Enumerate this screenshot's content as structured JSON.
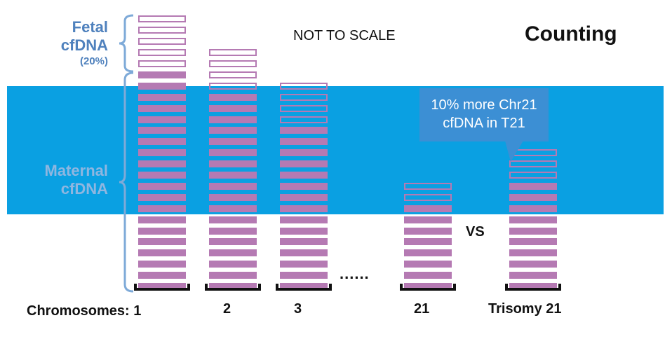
{
  "title": "Counting",
  "note": "NOT TO SCALE",
  "fetal": {
    "line1": "Fetal",
    "line2": "cfDNA",
    "pct": "(20%)"
  },
  "maternal": {
    "line1": "Maternal",
    "line2": "cfDNA"
  },
  "callout": {
    "line1": "10% more Chr21",
    "line2": "cfDNA in T21"
  },
  "vs_label": "VS",
  "ellipsis": "......",
  "chromosome_prefix": "Chromosomes: 1",
  "columns": [
    {
      "label": "2",
      "fetal_blocks": 4,
      "maternal_blocks": 18
    },
    {
      "label": "3",
      "fetal_blocks": 4,
      "maternal_blocks": 15
    },
    {
      "label": "21",
      "fetal_blocks": 2,
      "maternal_blocks": 8
    },
    {
      "label": "Trisomy 21",
      "fetal_blocks": 3,
      "maternal_blocks": 10
    }
  ],
  "column1": {
    "fetal_blocks": 5,
    "maternal_blocks": 20
  },
  "colors": {
    "band": "#0aa0e2",
    "block": "#b57ab3",
    "fetal_text": "#4f81bd",
    "maternal_text": "#8fb6e0",
    "callout": "#3c8fd4"
  }
}
